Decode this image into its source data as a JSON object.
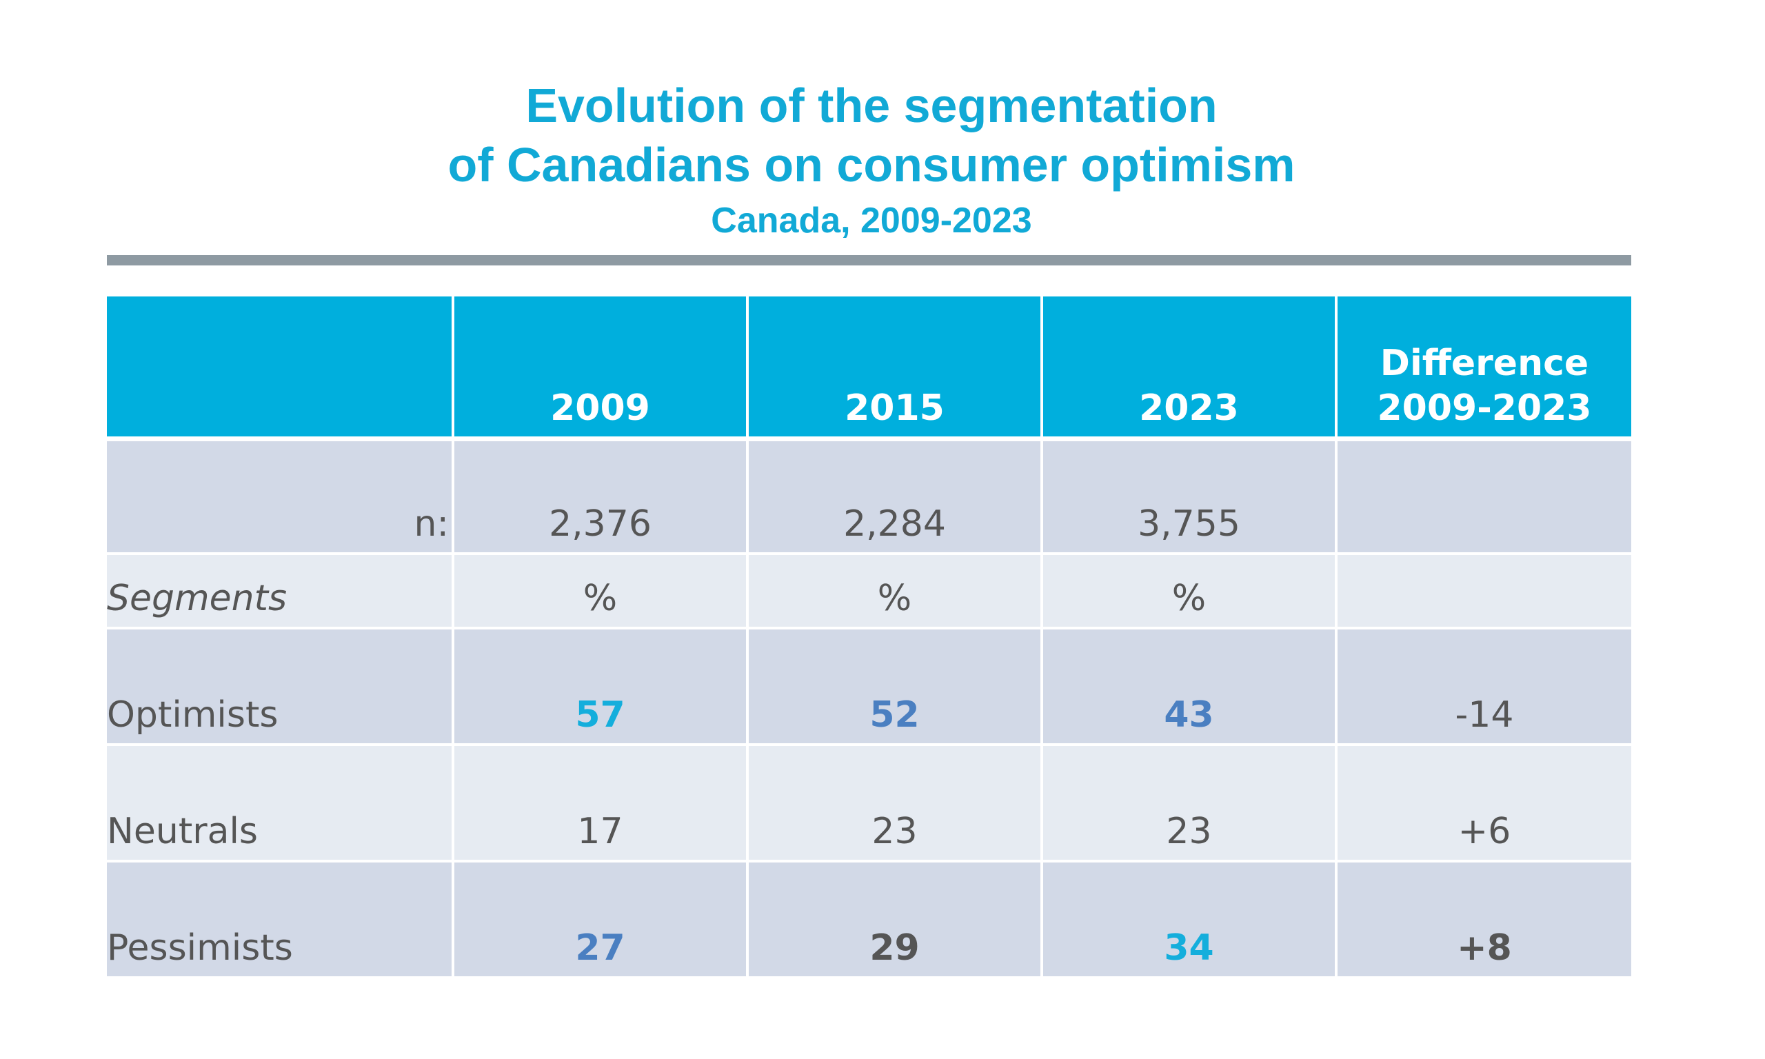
{
  "title_line1": "Evolution of the segmentation",
  "title_line2": "of Canadians on consumer optimism",
  "subtitle": "Canada, 2009-2023",
  "chart_data": {
    "type": "table",
    "columns": [
      "2009",
      "2015",
      "2023"
    ],
    "difference_header": [
      "Difference",
      "2009-2023"
    ],
    "sample_label": "n:",
    "sample_sizes": [
      "2,376",
      "2,284",
      "3,755"
    ],
    "unit_row_label": "Segments",
    "unit": "%",
    "rows": [
      {
        "label": "Optimists",
        "values": [
          "57",
          "52",
          "43"
        ],
        "difference": "-14"
      },
      {
        "label": "Neutrals",
        "values": [
          "17",
          "23",
          "23"
        ],
        "difference": "+6"
      },
      {
        "label": "Pessimists",
        "values": [
          "27",
          "29",
          "34"
        ],
        "difference": "+8"
      }
    ]
  },
  "colors": {
    "title": "#11a9d6",
    "header_background": "#00afdd",
    "row_dark": "#d2d9e7",
    "row_light": "#e6ebf2",
    "rule": "#8e9aa2",
    "value_cyan": "#14aedc",
    "value_blue": "#4a7fc1",
    "value_gray": "#555555"
  }
}
